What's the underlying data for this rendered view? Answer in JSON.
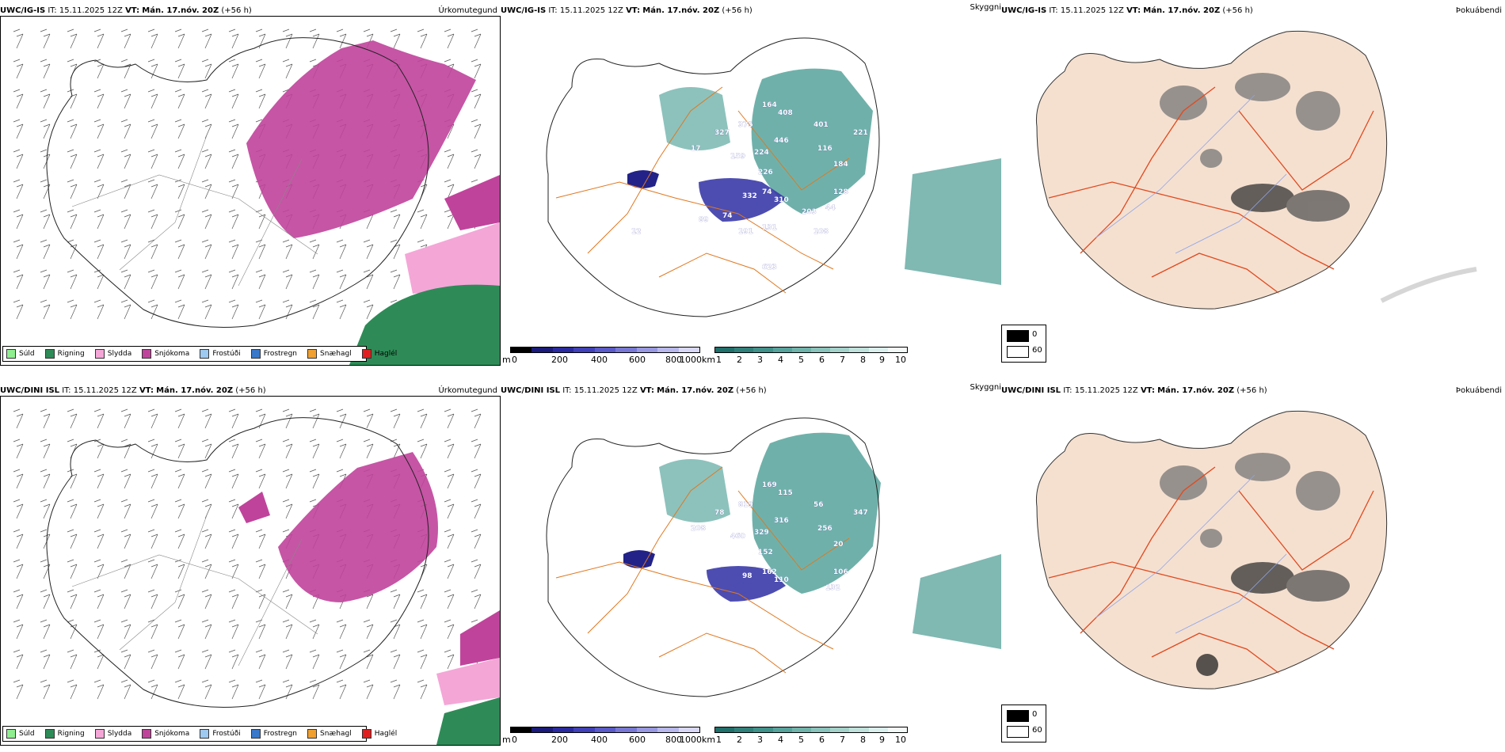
{
  "rows": [
    {
      "model": "UWC/IG-IS",
      "it_label": "IT:",
      "it_value": "15.11.2025 12Z",
      "vt_label": "VT:",
      "vt_value": "Mán. 17.nóv. 20Z",
      "lead": "(+56 h)"
    },
    {
      "model": "UWC/DINI ISL",
      "it_label": "IT:",
      "it_value": "15.11.2025 12Z",
      "vt_label": "VT:",
      "vt_value": "Mán. 17.nóv. 20Z",
      "lead": "(+56 h)"
    }
  ],
  "panel_titles": {
    "precip_type": "Úrkomutegund",
    "visibility": "Skyggni",
    "fog_index": "Þokuábendi"
  },
  "precip_legend": [
    {
      "label": "Súld",
      "color": "#90ee90"
    },
    {
      "label": "Rigning",
      "color": "#2e8b57"
    },
    {
      "label": "Slydda",
      "color": "#f4a6d7"
    },
    {
      "label": "Snjókoma",
      "color": "#c0439b"
    },
    {
      "label": "Frostúði",
      "color": "#9ec9f0"
    },
    {
      "label": "Frostregn",
      "color": "#3a78c9"
    },
    {
      "label": "Snæhagl",
      "color": "#f0a030"
    },
    {
      "label": "Haglél",
      "color": "#e02020"
    }
  ],
  "cloud_base_bar": {
    "unit": "m",
    "ticks": [
      "0",
      "200",
      "400",
      "600",
      "800",
      "1000"
    ],
    "colors": [
      "#000000",
      "#1a1a7a",
      "#2a2aa0",
      "#4040b8",
      "#5a5ac8",
      "#7878d4",
      "#9898e0",
      "#b8b8ec",
      "#d8d8f6"
    ]
  },
  "visibility_bar": {
    "unit": "km",
    "ticks": [
      "1",
      "2",
      "3",
      "4",
      "5",
      "6",
      "7",
      "8",
      "9",
      "10"
    ],
    "colors": [
      "#1f6f6a",
      "#2f807a",
      "#3f918a",
      "#56a39b",
      "#70b3ab",
      "#8ac3bb",
      "#a4d2cb",
      "#c0e1dc",
      "#dbefec",
      "#f2faf8"
    ]
  },
  "fog_legend": [
    {
      "label": "0",
      "color": "#000000"
    },
    {
      "label": "60",
      "color": "#ffffff"
    }
  ],
  "cloud_base_labels": {
    "row0": [
      "327",
      "375",
      "164",
      "408",
      "401",
      "446",
      "116",
      "221",
      "159",
      "224",
      "184",
      "226",
      "17",
      "332",
      "74",
      "310",
      "128",
      "44",
      "89",
      "74",
      "191",
      "131",
      "203",
      "108",
      "623",
      "12"
    ],
    "row1": [
      "78",
      "819",
      "169",
      "115",
      "56",
      "316",
      "256",
      "347",
      "460",
      "329",
      "20",
      "152",
      "208",
      "98",
      "162",
      "110",
      "106",
      "132"
    ]
  }
}
